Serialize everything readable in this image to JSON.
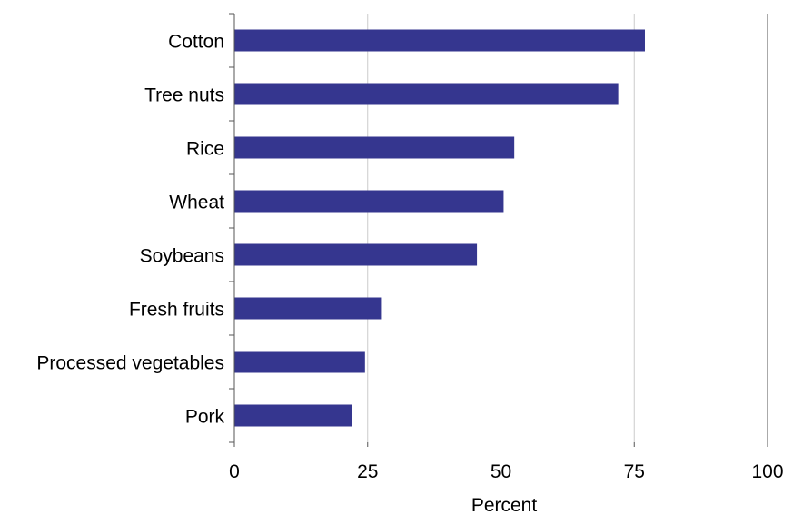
{
  "chart_data": {
    "type": "bar",
    "orientation": "horizontal",
    "categories": [
      "Cotton",
      "Tree nuts",
      "Rice",
      "Wheat",
      "Soybeans",
      "Fresh fruits",
      "Processed vegetables",
      "Pork"
    ],
    "values": [
      77,
      72,
      52.5,
      50.5,
      45.5,
      27.5,
      24.5,
      22
    ],
    "xlabel": "Percent",
    "ylabel": "",
    "xlim": [
      0,
      100
    ],
    "xticks": [
      "0",
      "25",
      "50",
      "75",
      "100"
    ],
    "grid": "vertical",
    "bar_color": "#35368f",
    "gridline_color": "#cccccc"
  }
}
